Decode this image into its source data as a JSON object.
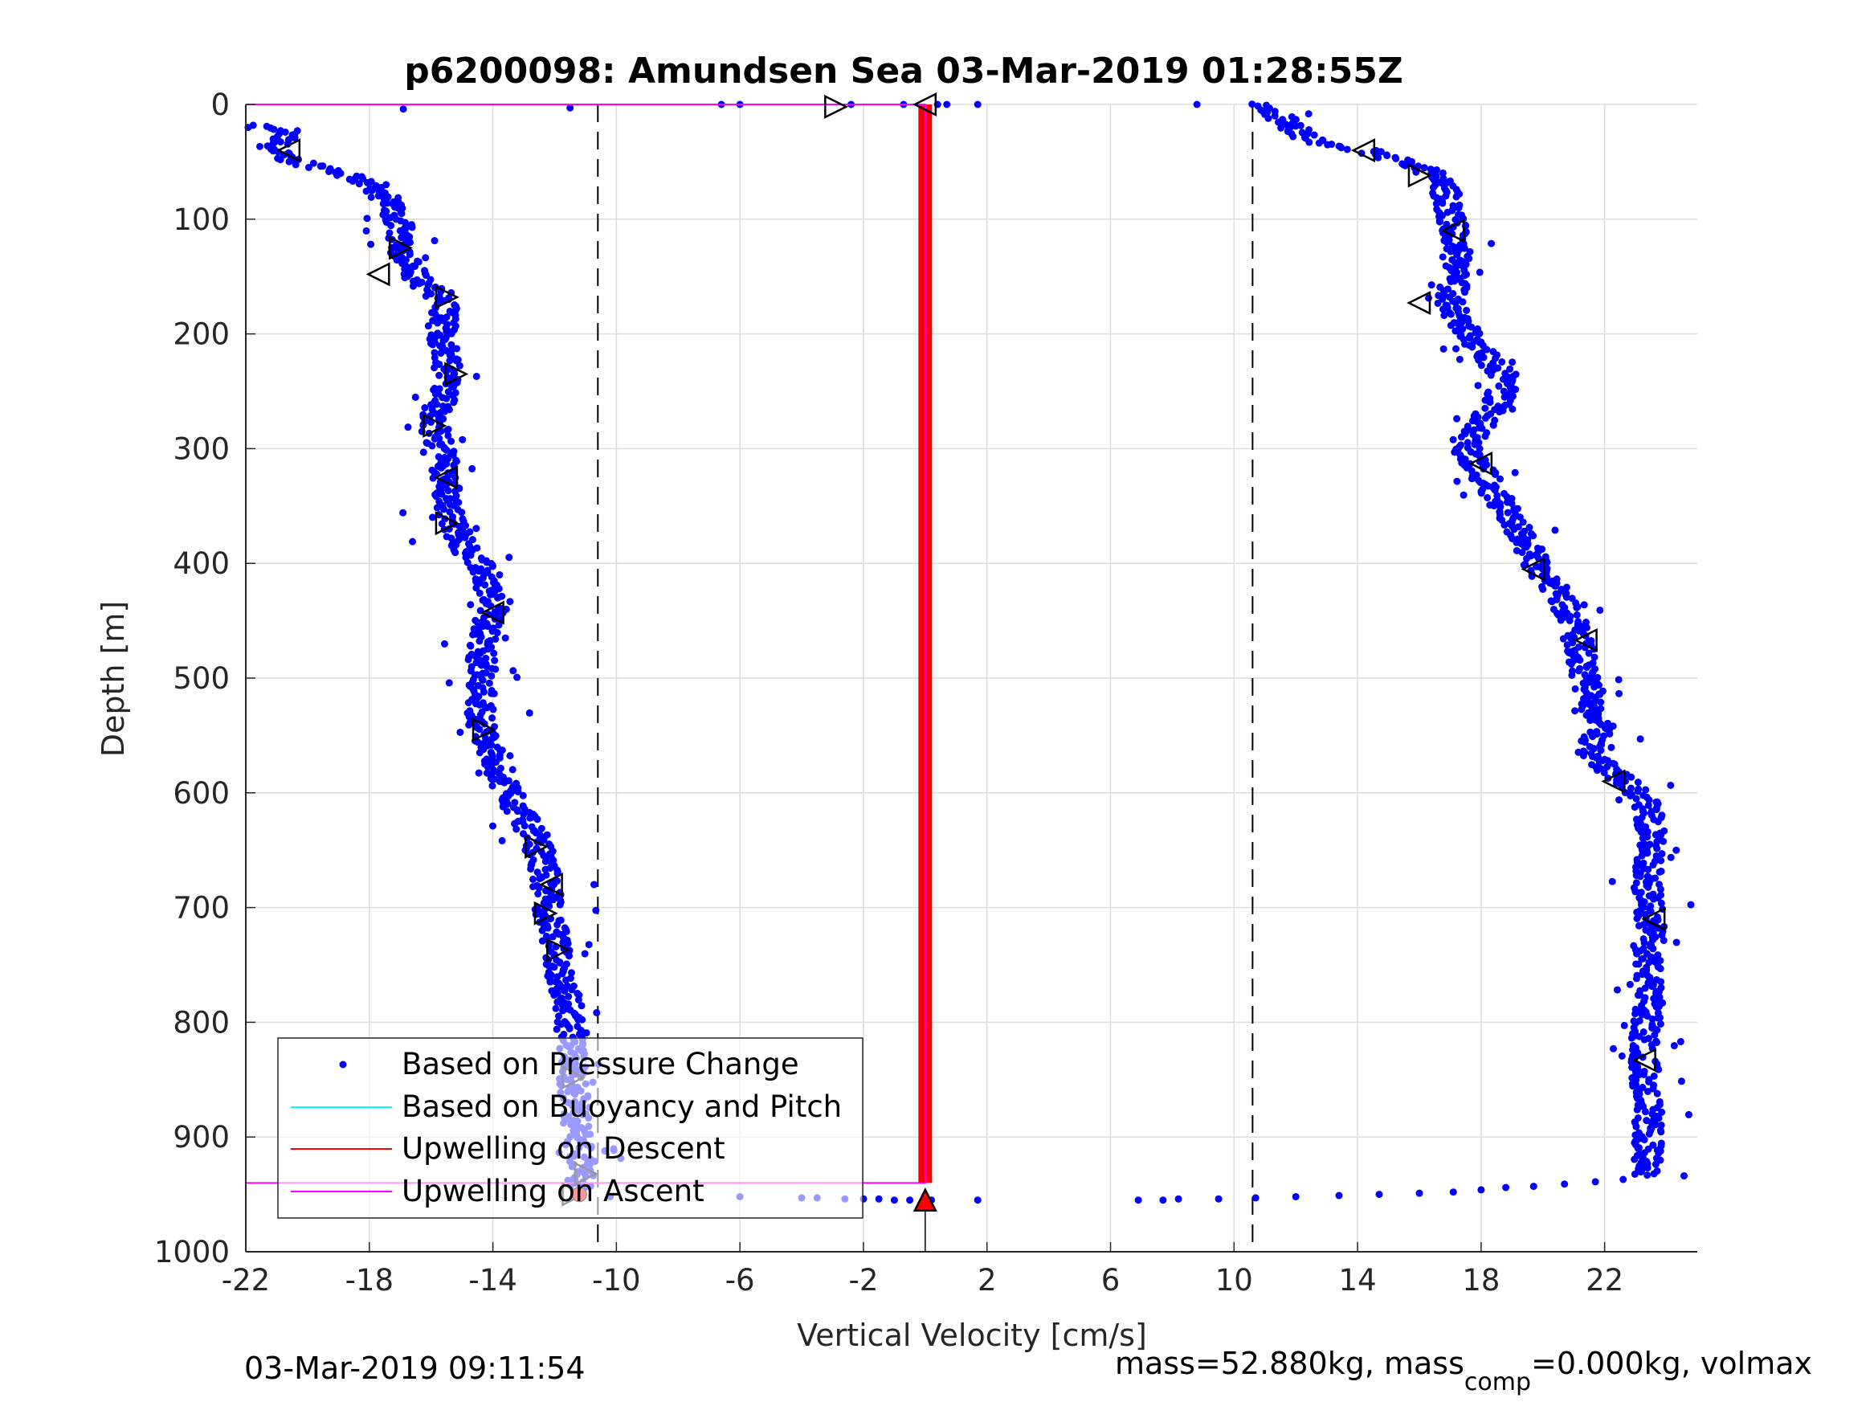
{
  "chart_data": {
    "type": "scatter",
    "title": "p6200098: Amundsen Sea 03-Mar-2019 01:28:55Z",
    "xlabel": "Vertical Velocity [cm/s]",
    "ylabel": "Depth [m]",
    "xlim": [
      -22,
      25
    ],
    "ylim": [
      0,
      1000
    ],
    "y_reversed": true,
    "grid": true,
    "x_ticks": [
      -22,
      -18,
      -14,
      -10,
      -6,
      -2,
      2,
      6,
      10,
      14,
      18,
      22
    ],
    "x_tick_labels": [
      "-22",
      "-18",
      "-14",
      "-10",
      "-6",
      "-2",
      "2",
      "6",
      "10",
      "14",
      "18",
      "22"
    ],
    "y_ticks": [
      0,
      100,
      200,
      300,
      400,
      500,
      600,
      700,
      800,
      900,
      1000
    ],
    "y_tick_labels": [
      "0",
      "100",
      "200",
      "300",
      "400",
      "500",
      "600",
      "700",
      "800",
      "900",
      "1000"
    ],
    "reference_lines_x": [
      -10.6,
      10.6
    ],
    "legend": {
      "placement": "bottom-left",
      "entries": [
        {
          "label": "Based on Pressure Change",
          "color": "#0000ff",
          "kind": "dot"
        },
        {
          "label": "Based on Buoyancy and Pitch",
          "color": "#00ffff",
          "kind": "line"
        },
        {
          "label": "Upwelling on Descent",
          "color": "#ff0000",
          "kind": "line"
        },
        {
          "label": "Upwelling on Ascent",
          "color": "#ff00ff",
          "kind": "line"
        }
      ]
    },
    "series": [
      {
        "name": "Based on Pressure Change",
        "color": "#0000ff",
        "kind": "dots",
        "descent_profile": [
          [
            -21.9,
            18
          ],
          [
            -21.3,
            22
          ],
          [
            -20.6,
            12
          ],
          [
            -20.1,
            6
          ],
          [
            -21.2,
            40
          ],
          [
            -20.6,
            48
          ],
          [
            -19.5,
            55
          ],
          [
            -18.6,
            62
          ],
          [
            -17.9,
            70
          ],
          [
            -17.5,
            80
          ],
          [
            -17.2,
            95
          ],
          [
            -17.0,
            110
          ],
          [
            -16.9,
            125
          ],
          [
            -16.8,
            140
          ],
          [
            -16.1,
            160
          ],
          [
            -15.5,
            175
          ],
          [
            -15.7,
            200
          ],
          [
            -15.4,
            225
          ],
          [
            -15.3,
            240
          ],
          [
            -15.8,
            265
          ],
          [
            -15.9,
            285
          ],
          [
            -15.6,
            305
          ],
          [
            -15.5,
            330
          ],
          [
            -15.4,
            360
          ],
          [
            -14.8,
            390
          ],
          [
            -14.2,
            410
          ],
          [
            -14.0,
            440
          ],
          [
            -14.4,
            470
          ],
          [
            -14.3,
            500
          ],
          [
            -14.4,
            530
          ],
          [
            -14.3,
            550
          ],
          [
            -13.8,
            580
          ],
          [
            -13.3,
            610
          ],
          [
            -12.6,
            640
          ],
          [
            -12.3,
            670
          ],
          [
            -12.2,
            700
          ],
          [
            -12.0,
            730
          ],
          [
            -11.8,
            760
          ],
          [
            -11.5,
            790
          ],
          [
            -11.5,
            820
          ],
          [
            -11.4,
            850
          ],
          [
            -11.3,
            880
          ],
          [
            -11.2,
            910
          ],
          [
            -11.1,
            930
          ],
          [
            -11.2,
            945
          ]
        ],
        "ascent_profile": [
          [
            10.9,
            0
          ],
          [
            11.5,
            10
          ],
          [
            11.9,
            20
          ],
          [
            12.4,
            30
          ],
          [
            14.3,
            40
          ],
          [
            15.5,
            50
          ],
          [
            16.4,
            60
          ],
          [
            16.8,
            75
          ],
          [
            17.0,
            90
          ],
          [
            17.1,
            110
          ],
          [
            17.2,
            130
          ],
          [
            17.1,
            150
          ],
          [
            17.0,
            175
          ],
          [
            17.6,
            200
          ],
          [
            18.2,
            220
          ],
          [
            18.9,
            240
          ],
          [
            18.4,
            265
          ],
          [
            17.8,
            285
          ],
          [
            17.5,
            300
          ],
          [
            18.0,
            320
          ],
          [
            18.5,
            340
          ],
          [
            19.0,
            360
          ],
          [
            19.4,
            380
          ],
          [
            19.9,
            405
          ],
          [
            20.5,
            425
          ],
          [
            21.0,
            450
          ],
          [
            21.2,
            470
          ],
          [
            21.3,
            495
          ],
          [
            21.6,
            520
          ],
          [
            21.9,
            545
          ],
          [
            21.5,
            565
          ],
          [
            22.4,
            585
          ],
          [
            23.3,
            605
          ],
          [
            23.5,
            630
          ],
          [
            23.4,
            660
          ],
          [
            23.4,
            690
          ],
          [
            23.5,
            720
          ],
          [
            23.4,
            750
          ],
          [
            23.4,
            780
          ],
          [
            23.3,
            810
          ],
          [
            23.3,
            840
          ],
          [
            23.4,
            870
          ],
          [
            23.4,
            900
          ],
          [
            23.4,
            925
          ],
          [
            23.1,
            935
          ]
        ],
        "surface_points": [
          [
            -6.6,
            0
          ],
          [
            -6.0,
            0
          ],
          [
            -2.4,
            0
          ],
          [
            -0.7,
            0
          ],
          [
            0.4,
            0
          ],
          [
            0.7,
            0
          ],
          [
            1.7,
            0
          ],
          [
            8.8,
            0
          ],
          [
            -16.9,
            4
          ],
          [
            -11.5,
            3
          ]
        ],
        "bottom_points": [
          [
            -10.2,
            952
          ],
          [
            -6.0,
            952
          ],
          [
            -4.0,
            953
          ],
          [
            -3.5,
            953
          ],
          [
            -2.6,
            954
          ],
          [
            -2.0,
            954
          ],
          [
            -1.5,
            954
          ],
          [
            -1.0,
            955
          ],
          [
            -0.5,
            955
          ],
          [
            0.2,
            955
          ],
          [
            1.7,
            955
          ],
          [
            6.9,
            955
          ],
          [
            7.7,
            955
          ],
          [
            8.2,
            954
          ],
          [
            9.5,
            954
          ],
          [
            10.7,
            953
          ],
          [
            12.0,
            952
          ],
          [
            13.4,
            951
          ],
          [
            14.7,
            950
          ],
          [
            16.0,
            949
          ],
          [
            17.1,
            948
          ],
          [
            18.0,
            946
          ],
          [
            18.8,
            944
          ],
          [
            19.7,
            943
          ],
          [
            20.7,
            941
          ],
          [
            21.7,
            939
          ],
          [
            22.6,
            937
          ]
        ]
      },
      {
        "name": "Based on Buoyancy and Pitch",
        "color": "#00ffff",
        "kind": "line",
        "points": []
      },
      {
        "name": "Upwelling on Descent",
        "color": "#ff0000",
        "kind": "line",
        "points": [
          [
            0,
            0
          ],
          [
            0,
            940
          ]
        ]
      },
      {
        "name": "Upwelling on Ascent",
        "color": "#ff00ff",
        "kind": "line",
        "points": [
          [
            -22,
            0
          ],
          [
            0,
            0
          ],
          [
            0,
            940
          ],
          [
            -22,
            940
          ]
        ]
      }
    ],
    "markers": {
      "descent_triangles": [
        [
          -20.6,
          40,
          "left"
        ],
        [
          -17.0,
          125,
          "right"
        ],
        [
          -17.7,
          148,
          "left"
        ],
        [
          -15.5,
          168,
          "right"
        ],
        [
          -15.2,
          235,
          "right"
        ],
        [
          -15.9,
          280,
          "right"
        ],
        [
          -15.5,
          325,
          "left"
        ],
        [
          -15.5,
          365,
          "right"
        ],
        [
          -14.0,
          443,
          "left"
        ],
        [
          -14.3,
          545,
          "right"
        ],
        [
          -12.6,
          647,
          "right"
        ],
        [
          -12.1,
          680,
          "left"
        ],
        [
          -12.3,
          705,
          "right"
        ],
        [
          -11.9,
          737,
          "right"
        ],
        [
          -11.4,
          848,
          "right"
        ],
        [
          -11.0,
          932,
          "right"
        ],
        [
          -11.4,
          950,
          "right"
        ],
        [
          -2.9,
          2,
          "right"
        ],
        [
          0.0,
          0,
          "left"
        ]
      ],
      "ascent_triangles": [
        [
          14.2,
          40,
          "left"
        ],
        [
          16.0,
          62,
          "right"
        ],
        [
          17.1,
          110,
          "left"
        ],
        [
          16.0,
          173,
          "left"
        ],
        [
          18.0,
          313,
          "left"
        ],
        [
          19.7,
          405,
          "left"
        ],
        [
          21.4,
          467,
          "left"
        ],
        [
          22.3,
          590,
          "left"
        ],
        [
          23.6,
          710,
          "left"
        ],
        [
          23.3,
          833,
          "left"
        ]
      ],
      "bottom_marker": [
        0.0,
        955,
        "up"
      ],
      "bottom_dot": [
        -11.2,
        950
      ]
    }
  },
  "footer": {
    "timestamp": "03-Mar-2019 09:11:54",
    "mass_text_1": "mass=52.880kg, mass",
    "mass_subscript": "comp",
    "mass_text_2": "=0.000kg, volmax"
  }
}
